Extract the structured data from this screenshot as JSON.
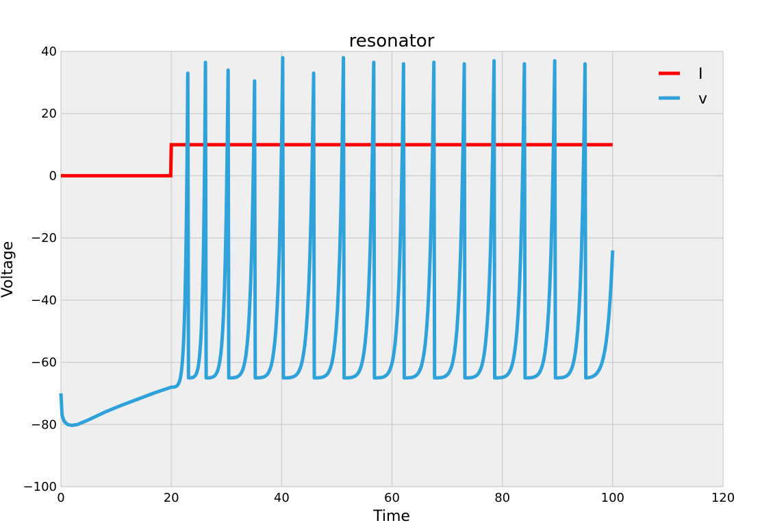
{
  "chart_data": {
    "type": "line",
    "title": "resonator",
    "xlabel": "Time",
    "ylabel": "Voltage",
    "xlim": [
      0,
      120
    ],
    "ylim": [
      -100,
      40
    ],
    "xticks": [
      0,
      20,
      40,
      60,
      80,
      100,
      120
    ],
    "yticks": [
      -100,
      -80,
      -60,
      -40,
      -20,
      0,
      20,
      40
    ],
    "grid": true,
    "legend": {
      "position": "top-right",
      "entries": [
        "I",
        "v"
      ]
    },
    "colors": {
      "I": "#ff0000",
      "v": "#30a2da",
      "background": "#efefef",
      "grid": "#cbcbcb"
    },
    "series": [
      {
        "name": "I",
        "x": [
          0,
          19.9,
          20,
          100
        ],
        "y": [
          0,
          0,
          10,
          10
        ]
      },
      {
        "name": "v",
        "resting": {
          "x": [
            0,
            0.2,
            0.6,
            1.2,
            2,
            3,
            5,
            8,
            11,
            14,
            17,
            20
          ],
          "y": [
            -70,
            -77,
            -79,
            -80,
            -80.3,
            -80,
            -78.5,
            -76,
            -73.8,
            -71.8,
            -69.8,
            -68
          ]
        },
        "spike_times": [
          23,
          26.2,
          30.3,
          35.1,
          40.2,
          45.8,
          51.2,
          56.7,
          62.1,
          67.6,
          73.1,
          78.5,
          84,
          89.5,
          95
        ],
        "spike_peaks": [
          33,
          36.5,
          34,
          30.5,
          38,
          33,
          38,
          36.5,
          36,
          36.5,
          36,
          37,
          36,
          37,
          36
        ],
        "reset": -65,
        "end": {
          "x": 100,
          "y": -24
        }
      }
    ]
  }
}
